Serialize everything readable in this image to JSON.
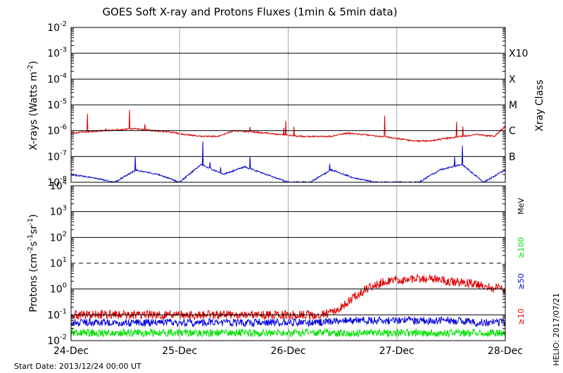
{
  "chart_data": [
    {
      "type": "line",
      "title": "GOES Soft X-ray and Protons Fluxes   (1min & 5min data)",
      "ylabel": "X-rays (Watts m^-2)",
      "ylabel_parts": [
        "X-rays (Watts m",
        "-2",
        ")"
      ],
      "yscale": "log",
      "ylim": [
        1e-08,
        0.01
      ],
      "ytick_labels": [
        {
          "base": "10",
          "exp": "-2"
        },
        {
          "base": "10",
          "exp": "-3"
        },
        {
          "base": "10",
          "exp": "-4"
        },
        {
          "base": "10",
          "exp": "-5"
        },
        {
          "base": "10",
          "exp": "-6"
        },
        {
          "base": "10",
          "exp": "-7"
        },
        {
          "base": "10",
          "exp": "-8"
        }
      ],
      "right_axis_label": "Xray Class",
      "class_labels": [
        "X10",
        "X",
        "M",
        "C",
        "B"
      ],
      "grid": true,
      "series": [
        {
          "color": "#d40000",
          "time_days": [
            0,
            0.15,
            0.3,
            0.45,
            0.6,
            0.75,
            0.9,
            1.05,
            1.2,
            1.35,
            1.5,
            1.65,
            1.8,
            1.95,
            2.1,
            2.25,
            2.4,
            2.55,
            2.7,
            2.85,
            3.0,
            3.15,
            3.3,
            3.45,
            3.6,
            3.75,
            3.9,
            4.0
          ],
          "values": [
            8e-07,
            9e-07,
            1e-06,
            1.1e-06,
            1.2e-06,
            1e-06,
            9e-07,
            7e-07,
            6e-07,
            6e-07,
            1e-06,
            9e-07,
            8e-07,
            7e-07,
            6e-07,
            6e-07,
            6e-07,
            8e-07,
            7e-07,
            6e-07,
            5e-07,
            4e-07,
            4e-07,
            5e-07,
            6e-07,
            7e-07,
            6e-07,
            1.5e-06
          ]
        },
        {
          "color": "#0000cc",
          "time_days": [
            0,
            0.2,
            0.4,
            0.6,
            0.8,
            1.0,
            1.2,
            1.4,
            1.6,
            1.8,
            2.0,
            2.2,
            2.4,
            2.6,
            2.8,
            3.0,
            3.2,
            3.4,
            3.6,
            3.8,
            4.0
          ],
          "values": [
            2e-08,
            1.5e-08,
            1e-08,
            3e-08,
            2e-08,
            1e-08,
            5e-08,
            2e-08,
            4e-08,
            2e-08,
            1e-08,
            1e-08,
            3e-08,
            1.5e-08,
            1e-08,
            1e-08,
            1e-08,
            3e-08,
            5e-08,
            1e-08,
            3e-08
          ]
        }
      ]
    },
    {
      "type": "line",
      "ylabel": "Protons (cm^-2 s^-1 sr^-1)",
      "ylabel_parts": [
        "Protons (cm",
        "-2",
        "s",
        "-1",
        "sr",
        "-1",
        ")"
      ],
      "yscale": "log",
      "ylim": [
        0.01,
        10000
      ],
      "ytick_labels": [
        {
          "base": "10",
          "exp": "4"
        },
        {
          "base": "10",
          "exp": "3"
        },
        {
          "base": "10",
          "exp": "2"
        },
        {
          "base": "10",
          "exp": "1"
        },
        {
          "base": "10",
          "exp": "0"
        },
        {
          "base": "10",
          "exp": "-1"
        },
        {
          "base": "10",
          "exp": "-2"
        }
      ],
      "threshold_value": 10,
      "xtick_labels": [
        "24-Dec",
        "25-Dec",
        "26-Dec",
        "27-Dec",
        "28-Dec"
      ],
      "grid": true,
      "energy_unit": "MeV",
      "series": [
        {
          "name": "≥100",
          "color": "#00e000",
          "time_days": [
            0,
            0.25,
            0.5,
            0.75,
            1.0,
            1.25,
            1.5,
            1.75,
            2.0,
            2.25,
            2.5,
            2.75,
            3.0,
            3.25,
            3.5,
            3.75,
            4.0
          ],
          "values": [
            0.02,
            0.02,
            0.02,
            0.02,
            0.02,
            0.02,
            0.02,
            0.02,
            0.02,
            0.02,
            0.02,
            0.02,
            0.02,
            0.02,
            0.02,
            0.02,
            0.02
          ]
        },
        {
          "name": "≥50",
          "color": "#0000dd",
          "time_days": [
            0,
            0.25,
            0.5,
            0.75,
            1.0,
            1.25,
            1.5,
            1.75,
            2.0,
            2.25,
            2.5,
            2.75,
            3.0,
            3.25,
            3.5,
            3.75,
            4.0
          ],
          "values": [
            0.05,
            0.05,
            0.05,
            0.05,
            0.05,
            0.05,
            0.05,
            0.05,
            0.05,
            0.05,
            0.06,
            0.06,
            0.06,
            0.06,
            0.06,
            0.05,
            0.05
          ]
        },
        {
          "name": "≥10",
          "color": "#dd0000",
          "time_days": [
            0,
            0.25,
            0.5,
            0.75,
            1.0,
            1.25,
            1.5,
            1.75,
            2.0,
            2.25,
            2.4,
            2.5,
            2.6,
            2.75,
            2.9,
            3.0,
            3.25,
            3.5,
            3.75,
            3.9,
            4.0
          ],
          "values": [
            0.1,
            0.1,
            0.1,
            0.1,
            0.1,
            0.1,
            0.1,
            0.1,
            0.1,
            0.1,
            0.12,
            0.2,
            0.5,
            1.2,
            2.0,
            2.3,
            2.5,
            2.0,
            1.5,
            1.1,
            0.9
          ]
        }
      ]
    }
  ],
  "footer": {
    "start_date": "Start Date: 2013/12/24 00:00 UT",
    "credit": "HELIO: 2017/07/21"
  }
}
